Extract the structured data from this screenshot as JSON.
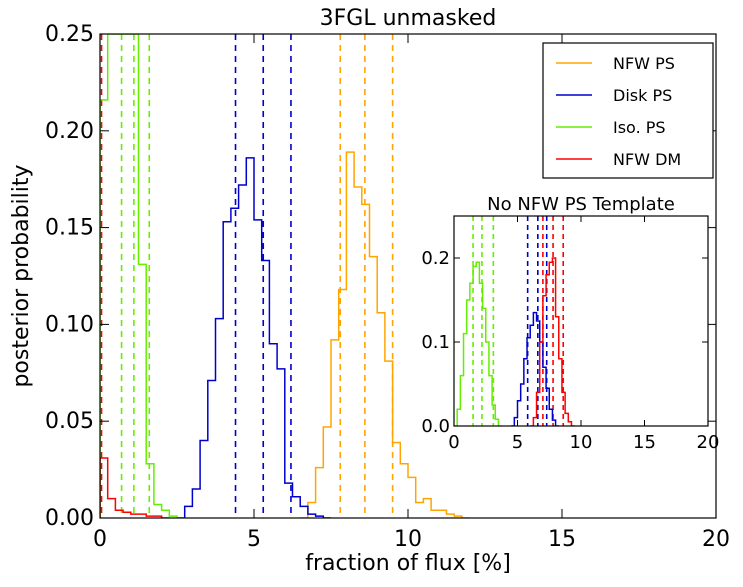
{
  "chart_data": [
    {
      "type": "line",
      "subtype": "step-histogram",
      "title": "3FGL unmasked",
      "xlabel": "fraction of flux [%]",
      "ylabel": "posterior probability",
      "xlim": [
        0,
        20
      ],
      "ylim": [
        0,
        0.25
      ],
      "xticks": [
        0,
        5,
        10,
        15,
        20
      ],
      "xtick_labels": [
        "0",
        "5",
        "10",
        "15",
        "20"
      ],
      "yticks": [
        0,
        0.05,
        0.1,
        0.15,
        0.2,
        0.25
      ],
      "ytick_labels": [
        "0.00",
        "0.05",
        "0.10",
        "0.15",
        "0.20",
        "0.25"
      ],
      "legend_position": "top-right",
      "series": [
        {
          "name": "NFW PS",
          "color": "#FFA500",
          "x": [
            6.5,
            6.75,
            7.0,
            7.25,
            7.5,
            7.75,
            8.0,
            8.25,
            8.5,
            8.75,
            9.0,
            9.25,
            9.5,
            9.75,
            10.0,
            10.25,
            10.5,
            10.75,
            11.0,
            11.25,
            11.5,
            11.75
          ],
          "values": [
            0.0,
            0.008,
            0.026,
            0.047,
            0.092,
            0.118,
            0.189,
            0.171,
            0.162,
            0.135,
            0.106,
            0.081,
            0.039,
            0.028,
            0.021,
            0.008,
            0.01,
            0.004,
            0.004,
            0.002,
            0.001,
            0.0
          ],
          "quantiles": [
            7.8,
            8.6,
            9.5
          ]
        },
        {
          "name": "Disk PS",
          "color": "#0000CC",
          "x": [
            2.5,
            2.75,
            3.0,
            3.25,
            3.5,
            3.75,
            4.0,
            4.25,
            4.5,
            4.75,
            5.0,
            5.25,
            5.5,
            5.75,
            6.0,
            6.25,
            6.5,
            6.75,
            7.0,
            7.25
          ],
          "values": [
            0.0,
            0.006,
            0.015,
            0.04,
            0.071,
            0.103,
            0.153,
            0.16,
            0.172,
            0.186,
            0.154,
            0.133,
            0.09,
            0.077,
            0.018,
            0.011,
            0.006,
            0.002,
            0.001,
            0.0
          ],
          "quantiles": [
            4.4,
            5.3,
            6.2
          ]
        },
        {
          "name": "Iso. PS",
          "color": "#66EE00",
          "x": [
            0.0,
            0.25,
            0.5,
            0.75,
            1.0,
            1.25,
            1.5,
            1.75,
            2.0,
            2.25,
            2.5
          ],
          "values": [
            0.216,
            0.25,
            0.25,
            0.25,
            0.25,
            0.131,
            0.028,
            0.007,
            0.004,
            0.001,
            0.0
          ],
          "quantiles": [
            0.7,
            1.1,
            1.6
          ]
        },
        {
          "name": "NFW DM",
          "color": "#FF0000",
          "x": [
            0.0,
            0.25,
            0.5,
            0.75,
            1.0,
            1.25,
            1.5,
            1.75,
            2.0
          ],
          "values": [
            0.031,
            0.01,
            0.004,
            0.003,
            0.002,
            0.002,
            0.001,
            0.001,
            0.0
          ],
          "quantiles": [
            0.05
          ]
        }
      ]
    },
    {
      "type": "line",
      "subtype": "step-histogram",
      "title": "No NFW PS Template",
      "xlim": [
        0,
        20
      ],
      "ylim": [
        0,
        0.25
      ],
      "xticks": [
        0,
        5,
        10,
        15,
        20
      ],
      "xtick_labels": [
        "0",
        "5",
        "10",
        "15",
        "20"
      ],
      "yticks": [
        0,
        0.1,
        0.2
      ],
      "ytick_labels": [
        "0.0",
        "0.1",
        "0.2"
      ],
      "series": [
        {
          "name": "Iso. PS",
          "color": "#66EE00",
          "x": [
            0.0,
            0.25,
            0.5,
            0.75,
            1.0,
            1.25,
            1.5,
            1.75,
            2.0,
            2.25,
            2.5,
            2.75,
            3.0,
            3.25,
            3.5
          ],
          "values": [
            0.0,
            0.02,
            0.06,
            0.11,
            0.15,
            0.17,
            0.19,
            0.195,
            0.17,
            0.14,
            0.1,
            0.06,
            0.025,
            0.008,
            0.0
          ],
          "quantiles": [
            1.5,
            2.2,
            3.1
          ]
        },
        {
          "name": "Disk PS",
          "color": "#0000CC",
          "x": [
            4.5,
            4.75,
            5.0,
            5.25,
            5.5,
            5.75,
            6.0,
            6.25,
            6.5,
            6.75,
            7.0,
            7.25,
            7.5,
            7.75,
            8.0
          ],
          "values": [
            0.0,
            0.01,
            0.03,
            0.05,
            0.08,
            0.105,
            0.12,
            0.135,
            0.125,
            0.1,
            0.07,
            0.045,
            0.02,
            0.007,
            0.0
          ],
          "quantiles": [
            5.8,
            6.6,
            7.3
          ]
        },
        {
          "name": "NFW DM",
          "color": "#FF0000",
          "x": [
            6.0,
            6.25,
            6.5,
            6.75,
            7.0,
            7.25,
            7.5,
            7.75,
            8.0,
            8.25,
            8.5,
            8.75,
            9.0,
            9.25
          ],
          "values": [
            0.0,
            0.01,
            0.04,
            0.1,
            0.155,
            0.18,
            0.195,
            0.2,
            0.13,
            0.08,
            0.04,
            0.015,
            0.005,
            0.0
          ],
          "quantiles": [
            7.0,
            7.8,
            8.6
          ]
        }
      ]
    }
  ]
}
